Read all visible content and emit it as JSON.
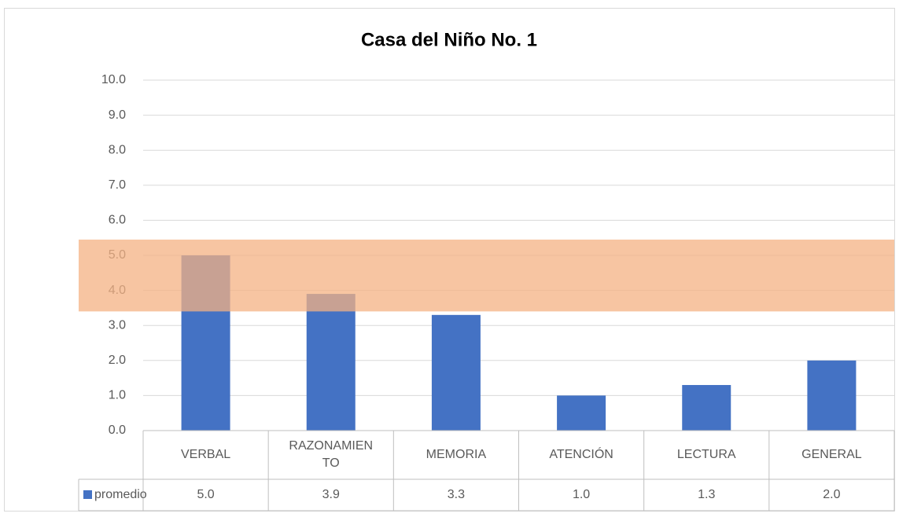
{
  "chart_data": {
    "type": "bar",
    "title": "Casa del Niño No. 1",
    "categories": [
      "VERBAL",
      "RAZONAMIENTO",
      "MEMORIA",
      "ATENCIÓN",
      "LECTURA",
      "GENERAL"
    ],
    "series": [
      {
        "name": "promedio",
        "color": "#4472c4",
        "values": [
          5.0,
          3.9,
          3.3,
          1.0,
          1.3,
          2.0
        ],
        "value_labels": [
          "5.0",
          "3.9",
          "3.3",
          "1.0",
          "1.3",
          "2.0"
        ]
      }
    ],
    "ylim": [
      0,
      10
    ],
    "yticks": [
      {
        "value": 0,
        "label": "0.0"
      },
      {
        "value": 1,
        "label": "1.0"
      },
      {
        "value": 2,
        "label": "2.0"
      },
      {
        "value": 3,
        "label": "3.0"
      },
      {
        "value": 4,
        "label": "4.0"
      },
      {
        "value": 5,
        "label": "5.0"
      },
      {
        "value": 6,
        "label": "6.0"
      },
      {
        "value": 7,
        "label": "7.0"
      },
      {
        "value": 8,
        "label": "8.0"
      },
      {
        "value": 9,
        "label": "9.0"
      },
      {
        "value": 10,
        "label": "10.0"
      }
    ],
    "grid": true,
    "highlight_band": {
      "from": 3.4,
      "to": 5.45,
      "color": "#f4b183"
    },
    "data_table": true
  }
}
